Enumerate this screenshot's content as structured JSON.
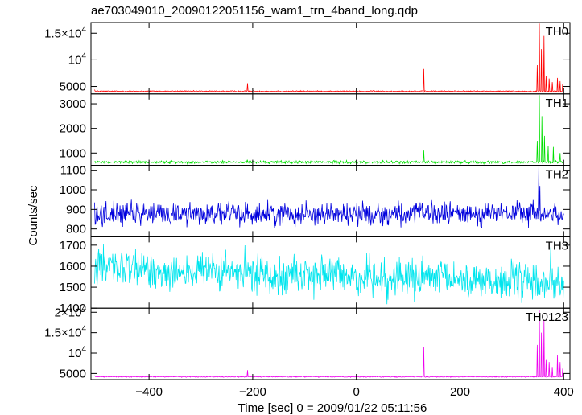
{
  "chart_data": {
    "type": "line",
    "title": "ae703049010_20090122051156_wam1_trn_4band_long.qdp",
    "ylabel": "Counts/sec",
    "xlabel": "Time [sec] 0 = 2009/01/22 05:11:56",
    "xlim": [
      -512,
      412
    ],
    "x_ticks": [
      -400,
      -200,
      0,
      200,
      400
    ],
    "x_tick_labels": [
      "−400",
      "−200",
      "0",
      "200",
      "400"
    ],
    "grid": false,
    "panels": [
      {
        "name": "TH0",
        "color": "#ff0000",
        "ylim": [
          3600,
          17000
        ],
        "y_ticks": [
          5000,
          10000,
          15000
        ],
        "y_tick_labels": [
          {
            "mantissa": "5000"
          },
          {
            "mantissa": "10",
            "exponent": "4"
          },
          {
            "mantissa": "1.5×10",
            "exponent": "4"
          }
        ],
        "baseline": 4100,
        "noise": 80,
        "spikes": [
          [
            -505,
            4400
          ],
          [
            -210,
            5600
          ],
          [
            130,
            8300
          ],
          [
            349,
            9000
          ],
          [
            353,
            16800
          ],
          [
            357,
            12000
          ],
          [
            362,
            14500
          ],
          [
            366,
            7000
          ],
          [
            372,
            6500
          ],
          [
            378,
            5800
          ],
          [
            388,
            6600
          ],
          [
            393,
            6000
          ],
          [
            398,
            5500
          ]
        ]
      },
      {
        "name": "TH1",
        "color": "#00e000",
        "ylim": [
          500,
          3400
        ],
        "y_ticks": [
          1000,
          2000,
          3000
        ],
        "y_tick_labels": [
          {
            "mantissa": "1000"
          },
          {
            "mantissa": "2000"
          },
          {
            "mantissa": "3000"
          }
        ],
        "baseline": 630,
        "noise": 40,
        "spikes": [
          [
            -210,
            700
          ],
          [
            130,
            1100
          ],
          [
            349,
            1500
          ],
          [
            353,
            3350
          ],
          [
            358,
            2500
          ],
          [
            363,
            1700
          ],
          [
            370,
            1300
          ],
          [
            380,
            1250
          ],
          [
            393,
            1000
          ]
        ]
      },
      {
        "name": "TH2",
        "color": "#0000dd",
        "ylim": [
          760,
          1125
        ],
        "y_ticks": [
          800,
          900,
          1000,
          1100
        ],
        "y_tick_labels": [
          {
            "mantissa": "800"
          },
          {
            "mantissa": "900"
          },
          {
            "mantissa": "1000"
          },
          {
            "mantissa": "1100"
          }
        ],
        "baseline": 878,
        "noise": 42,
        "spikes": [
          [
            352,
            1125
          ],
          [
            354,
            1020
          ]
        ]
      },
      {
        "name": "TH3",
        "color": "#00e5ee",
        "ylim": [
          1400,
          1740
        ],
        "y_ticks": [
          1400,
          1500,
          1600,
          1700
        ],
        "y_tick_labels": [
          {
            "mantissa": "1400"
          },
          {
            "mantissa": "1500"
          },
          {
            "mantissa": "1600"
          },
          {
            "mantissa": "1700"
          }
        ],
        "baseline": 1590,
        "noise": 65,
        "trend": -70,
        "spikes": [
          [
            375,
            1690
          ]
        ]
      },
      {
        "name": "TH0123",
        "color": "#ee00ee",
        "ylim": [
          3500,
          21000
        ],
        "y_ticks": [
          5000,
          10000,
          15000,
          20000
        ],
        "y_tick_labels": [
          {
            "mantissa": "5000"
          },
          {
            "mantissa": "10",
            "exponent": "4"
          },
          {
            "mantissa": "1.5×10",
            "exponent": "4"
          },
          {
            "mantissa": "2×10",
            "exponent": "4"
          }
        ],
        "baseline": 4200,
        "noise": 90,
        "spikes": [
          [
            -505,
            4500
          ],
          [
            -210,
            5800
          ],
          [
            130,
            11500
          ],
          [
            349,
            12000
          ],
          [
            353,
            20500
          ],
          [
            357,
            15000
          ],
          [
            362,
            18000
          ],
          [
            366,
            8500
          ],
          [
            372,
            7800
          ],
          [
            378,
            6600
          ],
          [
            388,
            9500
          ],
          [
            393,
            7800
          ],
          [
            398,
            6200
          ]
        ]
      }
    ]
  }
}
